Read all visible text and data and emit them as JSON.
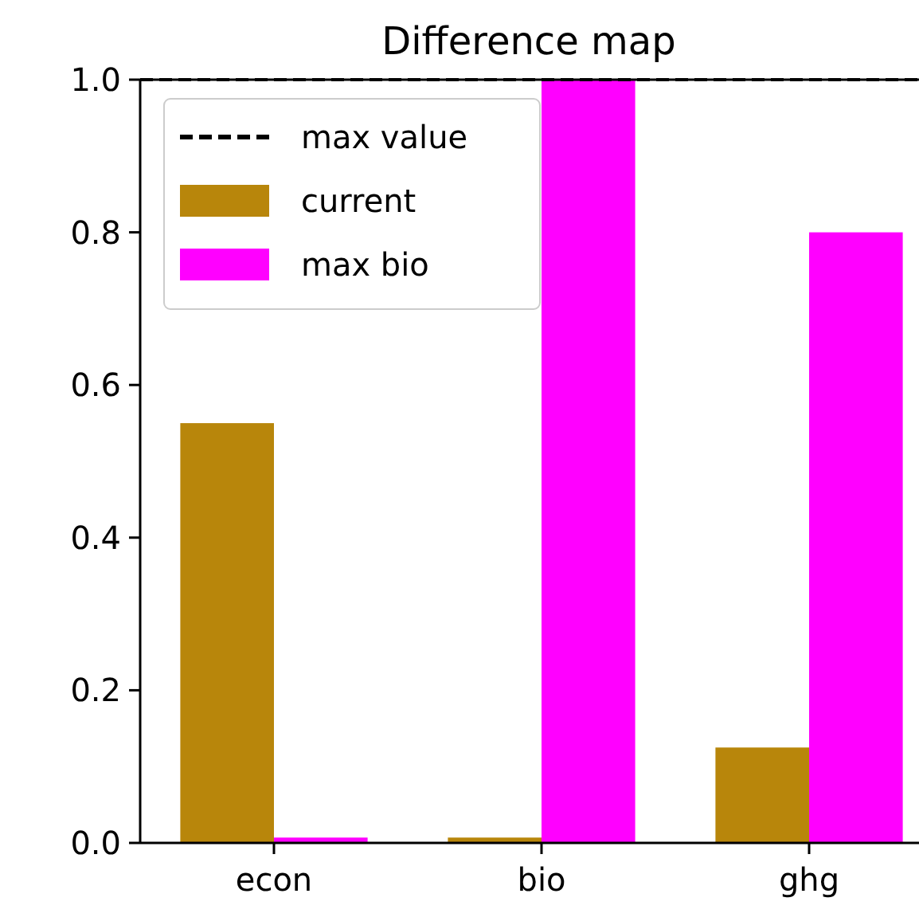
{
  "chart_data": {
    "type": "bar",
    "title": "Difference map",
    "categories": [
      "econ",
      "bio",
      "ghg"
    ],
    "series": [
      {
        "name": "current",
        "color": "#b8860b",
        "values": [
          0.55,
          0.007,
          0.125
        ]
      },
      {
        "name": "max bio",
        "color": "#ff00ff",
        "values": [
          0.007,
          1.0,
          0.8
        ]
      }
    ],
    "ylim": [
      0,
      1.0
    ],
    "yticks": [
      {
        "value": 0,
        "label": "0.0"
      },
      {
        "value": 0.2,
        "label": "0.2"
      },
      {
        "value": 0.4,
        "label": "0.4"
      },
      {
        "value": 0.6,
        "label": "0.6"
      },
      {
        "value": 0.8,
        "label": "0.8"
      },
      {
        "value": 1.0,
        "label": "1.0"
      }
    ],
    "ref_lines": [
      {
        "axis": "y",
        "value": 1.0,
        "label": "max value",
        "color": "#000000",
        "line_style": "dashed"
      }
    ],
    "legend": "top left",
    "grid": false
  }
}
